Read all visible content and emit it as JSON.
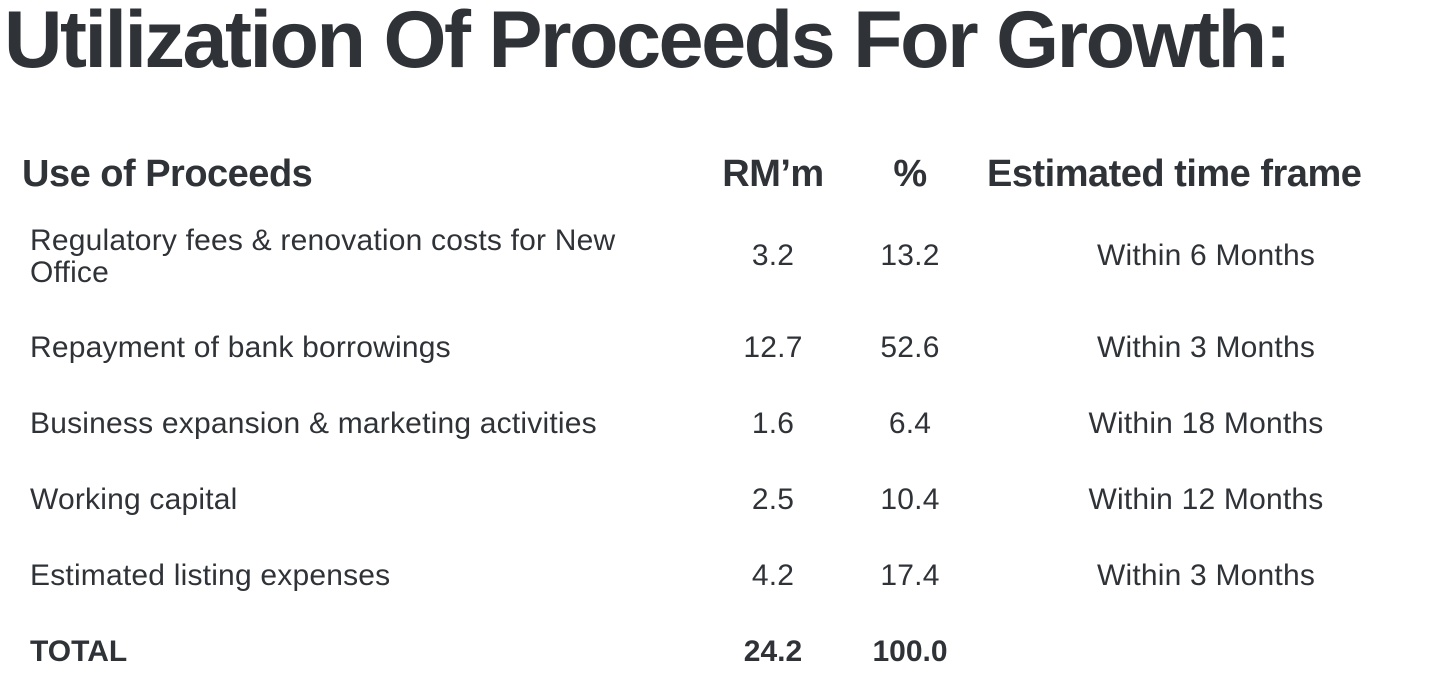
{
  "title": "Utilization Of Proceeds For Growth:",
  "headers": {
    "use": "Use of Proceeds",
    "rm": "RM’m",
    "pct": "%",
    "time": "Estimated time frame"
  },
  "rows": [
    {
      "use": "Regulatory fees & renovation costs for New Office",
      "rm": "3.2",
      "pct": "13.2",
      "time": "Within 6 Months"
    },
    {
      "use": "Repayment of bank borrowings",
      "rm": "12.7",
      "pct": "52.6",
      "time": "Within 3 Months"
    },
    {
      "use": "Business expansion & marketing activities",
      "rm": "1.6",
      "pct": "6.4",
      "time": "Within 18 Months"
    },
    {
      "use": "Working capital",
      "rm": "2.5",
      "pct": "10.4",
      "time": "Within 12 Months"
    },
    {
      "use": "Estimated listing expenses",
      "rm": "4.2",
      "pct": "17.4",
      "time": "Within 3 Months"
    }
  ],
  "total": {
    "label": "TOTAL",
    "rm": "24.2",
    "pct": "100.0"
  }
}
